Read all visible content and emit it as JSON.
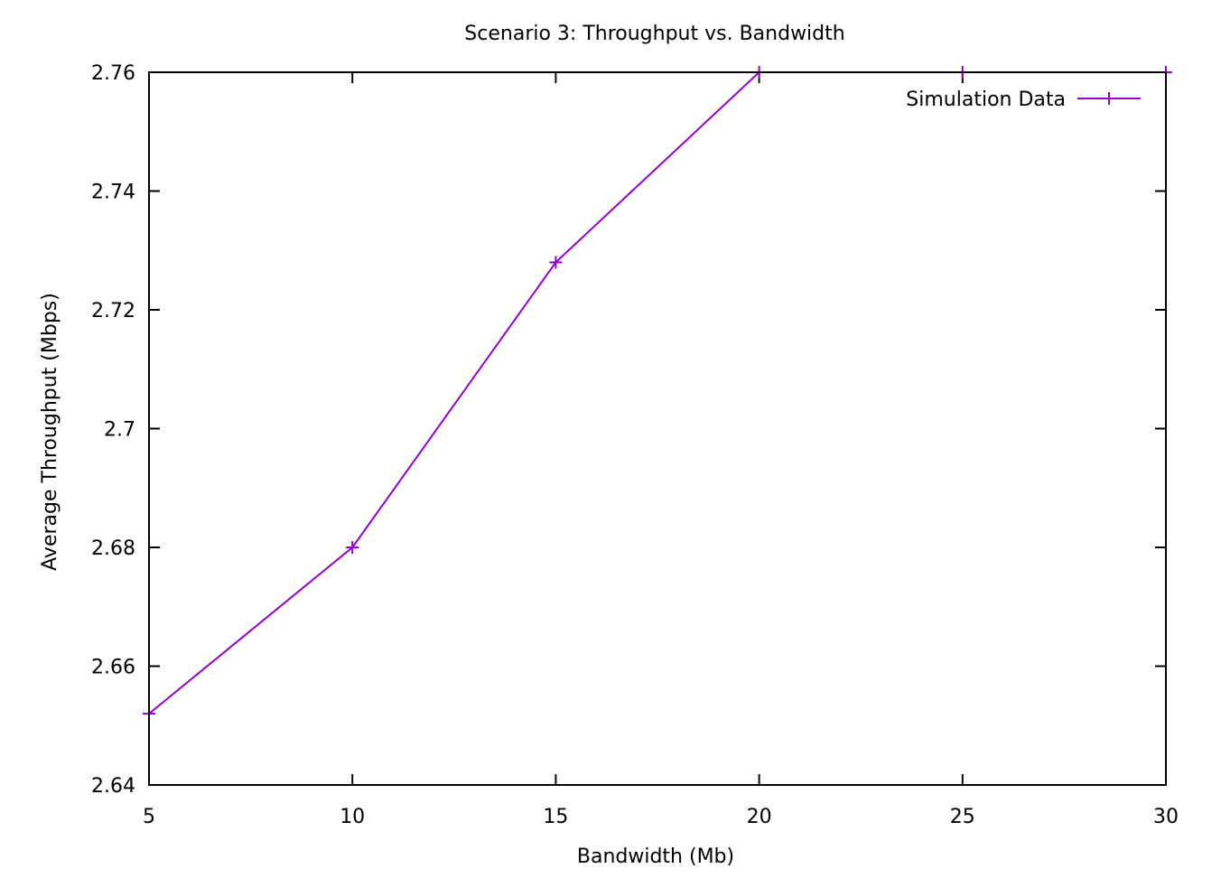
{
  "chart_data": {
    "type": "line",
    "title": "Scenario 3: Throughput vs. Bandwidth",
    "xlabel": "Bandwidth (Mb)",
    "ylabel": "Average Throughput (Mbps)",
    "xlim": [
      5,
      30
    ],
    "ylim": [
      2.64,
      2.76
    ],
    "x_ticks": [
      "5",
      "10",
      "15",
      "20",
      "25",
      "30"
    ],
    "y_ticks": [
      "2.64",
      "2.66",
      "2.68",
      "2.7",
      "2.72",
      "2.74",
      "2.76"
    ],
    "grid": false,
    "legend_position": "top-right",
    "series": [
      {
        "name": "Simulation Data",
        "color": "#9400d3",
        "marker": "plus",
        "x": [
          5,
          10,
          15,
          20,
          25,
          30
        ],
        "y": [
          2.652,
          2.68,
          2.728,
          2.76,
          2.76,
          2.76
        ]
      }
    ]
  }
}
